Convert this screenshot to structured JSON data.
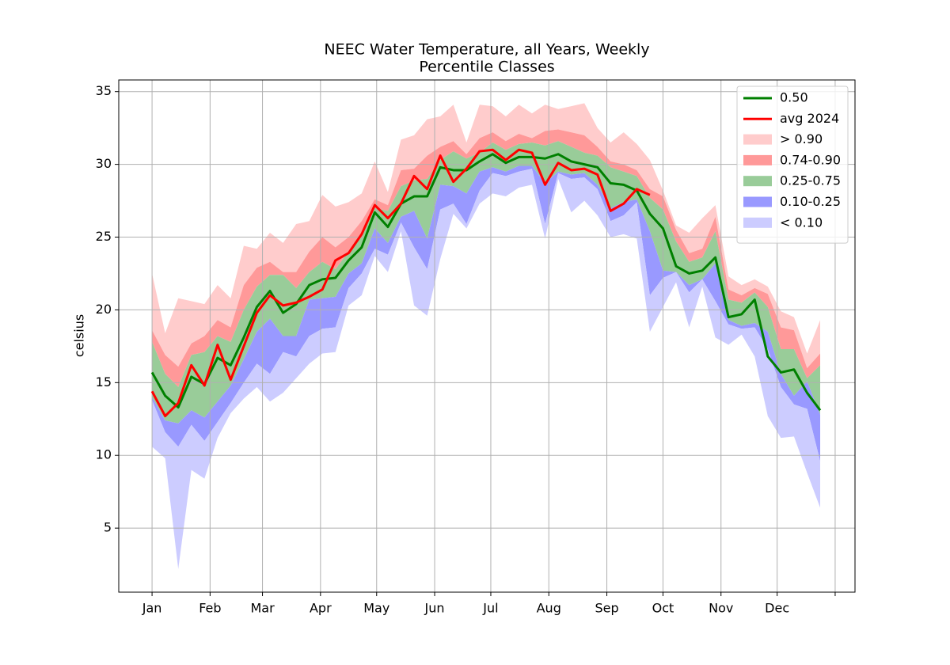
{
  "chart_data": {
    "type": "band-line",
    "title": "NEEC Water Temperature, all Years, Weekly",
    "subtitle": "Percentile Classes",
    "y_label": "celsius",
    "xlim": [
      -16.8,
      376.6
    ],
    "ylim": [
      0.6,
      35.8
    ],
    "xticks": [
      {
        "value": 1,
        "label": "Jan"
      },
      {
        "value": 32,
        "label": "Feb"
      },
      {
        "value": 60,
        "label": "Mar"
      },
      {
        "value": 91,
        "label": "Apr"
      },
      {
        "value": 121,
        "label": "May"
      },
      {
        "value": 152,
        "label": "Jun"
      },
      {
        "value": 182,
        "label": "Jul"
      },
      {
        "value": 213,
        "label": "Aug"
      },
      {
        "value": 244,
        "label": "Sep"
      },
      {
        "value": 274,
        "label": "Oct"
      },
      {
        "value": 305,
        "label": "Nov"
      },
      {
        "value": 335,
        "label": "Dec"
      },
      {
        "value": 366
      }
    ],
    "yticks": [
      5,
      10,
      15,
      20,
      25,
      30,
      35
    ],
    "grid": true,
    "legend": "upper right",
    "x": [
      1,
      8,
      15,
      22,
      29,
      36,
      43,
      50,
      57,
      64,
      71,
      78,
      85,
      92,
      99,
      106,
      113,
      120,
      127,
      134,
      141,
      148,
      155,
      162,
      169,
      176,
      183,
      190,
      197,
      204,
      211,
      218,
      225,
      232,
      239,
      246,
      253,
      260,
      267,
      274,
      281,
      288,
      295,
      302,
      309,
      316,
      323,
      330,
      337,
      344,
      351,
      358
    ],
    "series": [
      {
        "name": "0.50",
        "color": "#008000",
        "values": [
          15.7,
          14.1,
          13.3,
          15.4,
          14.9,
          16.7,
          16.2,
          18.1,
          20.2,
          21.3,
          19.8,
          20.4,
          21.7,
          22.1,
          22.2,
          23.4,
          24.3,
          26.7,
          25.7,
          27.3,
          27.8,
          27.8,
          29.8,
          29.6,
          29.6,
          30.2,
          30.7,
          30.1,
          30.5,
          30.5,
          30.4,
          30.7,
          30.2,
          30.0,
          29.8,
          28.7,
          28.6,
          28.2,
          26.6,
          25.6,
          23.0,
          22.5,
          22.7,
          23.6,
          19.5,
          19.7,
          20.7,
          16.8,
          15.7,
          15.9,
          14.3,
          13.1
        ]
      },
      {
        "name": "avg 2024",
        "color": "#ff0000",
        "values": [
          14.4,
          12.7,
          13.6,
          16.2,
          14.8,
          17.6,
          15.2,
          17.5,
          19.8,
          21.0,
          20.3,
          20.5,
          20.9,
          21.4,
          23.4,
          23.9,
          25.2,
          27.2,
          26.3,
          27.3,
          29.2,
          28.3,
          30.6,
          28.8,
          29.7,
          30.9,
          31.0,
          30.3,
          31.0,
          30.8,
          28.6,
          30.1,
          29.6,
          29.7,
          29.3,
          26.8,
          27.3,
          28.3,
          27.9,
          null,
          null,
          null,
          null,
          null,
          null,
          null,
          null,
          null,
          null,
          null,
          null,
          null
        ]
      }
    ],
    "bands": [
      {
        "name": "> 0.90",
        "color": "#ffcccc",
        "lower": [
          18.6,
          16.9,
          16.1,
          17.7,
          18.2,
          19.3,
          18.8,
          21.7,
          22.9,
          23.3,
          22.6,
          22.6,
          24.0,
          25.0,
          24.3,
          25.0,
          26.1,
          27.6,
          27.2,
          29.6,
          29.7,
          30.6,
          31.2,
          31.6,
          30.7,
          31.8,
          32.2,
          31.6,
          32.1,
          31.8,
          32.3,
          32.4,
          32.2,
          32.0,
          31.2,
          30.2,
          30.0,
          29.6,
          28.3,
          27.8,
          25.5,
          23.9,
          24.2,
          26.4,
          21.4,
          21.0,
          21.5,
          21.1,
          18.8,
          18.6,
          16.0,
          17.0
        ],
        "upper": [
          22.5,
          18.4,
          20.8,
          20.6,
          20.4,
          21.7,
          20.8,
          24.4,
          24.2,
          25.3,
          24.6,
          25.9,
          26.1,
          27.9,
          27.1,
          27.4,
          28.0,
          30.2,
          28.1,
          31.7,
          32.0,
          33.1,
          33.3,
          34.1,
          31.5,
          34.1,
          34.0,
          33.3,
          34.1,
          33.5,
          34.1,
          33.8,
          34.0,
          34.2,
          32.5,
          31.5,
          32.2,
          31.4,
          30.3,
          28.2,
          25.8,
          25.3,
          26.3,
          27.2,
          22.3,
          21.7,
          22.1,
          21.6,
          19.9,
          19.5,
          17.0,
          19.3
        ]
      },
      {
        "name": "0.74-0.90",
        "color": "#ff9999",
        "lower": [
          17.8,
          15.6,
          14.7,
          16.9,
          17.1,
          18.2,
          17.8,
          20.0,
          21.6,
          22.4,
          22.4,
          21.5,
          22.6,
          23.3,
          22.8,
          24.0,
          25.0,
          27.0,
          26.8,
          28.5,
          28.9,
          29.0,
          30.3,
          30.9,
          30.4,
          30.8,
          31.5,
          31.0,
          31.4,
          31.5,
          31.3,
          31.6,
          31.2,
          30.8,
          30.6,
          29.8,
          29.5,
          29.2,
          27.7,
          26.9,
          24.7,
          23.3,
          23.6,
          25.4,
          20.7,
          20.5,
          21.2,
          20.2,
          17.3,
          17.3,
          15.3,
          16.2
        ],
        "upper": [
          18.6,
          16.9,
          16.1,
          17.7,
          18.2,
          19.3,
          18.8,
          21.7,
          22.9,
          23.3,
          22.6,
          22.6,
          24.0,
          25.0,
          24.3,
          25.0,
          26.1,
          27.6,
          27.2,
          29.6,
          29.7,
          30.6,
          31.2,
          31.6,
          30.7,
          31.8,
          32.2,
          31.6,
          32.1,
          31.8,
          32.3,
          32.4,
          32.2,
          32.0,
          31.2,
          30.2,
          30.0,
          29.6,
          28.3,
          27.8,
          25.5,
          23.9,
          24.2,
          26.4,
          21.4,
          21.0,
          21.5,
          21.1,
          18.8,
          18.6,
          16.0,
          17.0
        ]
      },
      {
        "name": "0.25-0.75",
        "color": "#99cc99",
        "lower": [
          14.0,
          12.4,
          12.2,
          13.1,
          12.6,
          13.7,
          14.8,
          16.6,
          18.5,
          19.4,
          18.2,
          18.2,
          20.7,
          20.8,
          20.9,
          22.5,
          23.2,
          25.6,
          24.6,
          26.4,
          26.8,
          24.9,
          28.6,
          28.5,
          28.0,
          29.5,
          29.8,
          29.5,
          29.9,
          29.9,
          28.7,
          29.5,
          29.3,
          29.4,
          28.6,
          27.0,
          27.4,
          27.6,
          25.4,
          22.7,
          22.6,
          21.7,
          22.1,
          23.2,
          19.3,
          18.9,
          19.1,
          18.5,
          15.6,
          14.1,
          15.1,
          12.8
        ],
        "upper": [
          17.8,
          15.6,
          14.7,
          16.9,
          17.1,
          18.2,
          17.8,
          20.0,
          21.6,
          22.4,
          22.4,
          21.5,
          22.6,
          23.3,
          22.8,
          24.0,
          25.0,
          27.0,
          26.8,
          28.5,
          28.9,
          29.0,
          30.3,
          30.9,
          30.4,
          30.8,
          31.5,
          31.0,
          31.4,
          31.5,
          31.3,
          31.6,
          31.2,
          30.8,
          30.6,
          29.8,
          29.5,
          29.2,
          27.7,
          26.9,
          24.7,
          23.3,
          23.6,
          25.4,
          20.7,
          20.5,
          21.2,
          20.2,
          17.3,
          17.3,
          15.3,
          16.2
        ]
      },
      {
        "name": "0.10-0.25",
        "color": "#9999ff",
        "lower": [
          13.8,
          11.6,
          10.6,
          12.1,
          11.0,
          12.3,
          13.6,
          15.0,
          16.3,
          15.6,
          17.1,
          16.8,
          18.2,
          18.7,
          18.8,
          21.5,
          22.5,
          24.2,
          23.8,
          26.0,
          24.3,
          22.8,
          26.9,
          27.3,
          25.9,
          28.2,
          29.4,
          29.2,
          29.5,
          29.7,
          25.9,
          29.4,
          29.0,
          29.1,
          28.3,
          26.1,
          26.5,
          27.4,
          21.0,
          22.2,
          22.6,
          21.2,
          22.1,
          20.6,
          19.0,
          18.7,
          18.8,
          17.3,
          14.7,
          13.5,
          13.2,
          9.6
        ],
        "upper": [
          14.0,
          12.4,
          12.2,
          13.1,
          12.6,
          13.7,
          14.8,
          16.6,
          18.5,
          19.4,
          18.2,
          18.2,
          20.7,
          20.8,
          20.9,
          22.5,
          23.2,
          25.6,
          24.6,
          26.4,
          26.8,
          24.9,
          28.6,
          28.5,
          28.0,
          29.5,
          29.8,
          29.5,
          29.9,
          29.9,
          28.7,
          29.5,
          29.3,
          29.4,
          28.6,
          27.0,
          27.4,
          27.6,
          25.4,
          22.7,
          22.6,
          21.7,
          22.1,
          23.2,
          19.3,
          18.9,
          19.1,
          18.5,
          15.6,
          14.1,
          15.1,
          12.8
        ]
      },
      {
        "name": "< 0.10",
        "color": "#ccccff",
        "lower": [
          10.6,
          9.8,
          2.2,
          9.0,
          8.4,
          11.2,
          12.9,
          13.9,
          14.7,
          13.7,
          14.3,
          15.3,
          16.3,
          17.0,
          17.1,
          20.3,
          21.0,
          23.7,
          22.6,
          25.4,
          20.3,
          19.6,
          23.5,
          26.6,
          25.6,
          27.3,
          28.0,
          27.8,
          28.4,
          28.6,
          24.9,
          29.0,
          26.7,
          27.5,
          26.5,
          25.0,
          25.2,
          24.9,
          18.5,
          20.2,
          21.9,
          18.8,
          21.6,
          18.1,
          17.6,
          18.3,
          16.8,
          12.7,
          11.2,
          11.3,
          8.8,
          6.4
        ],
        "upper": [
          13.8,
          11.6,
          10.6,
          12.1,
          11.0,
          12.3,
          13.6,
          15.0,
          16.3,
          15.6,
          17.1,
          16.8,
          18.2,
          18.7,
          18.8,
          21.5,
          22.5,
          24.2,
          23.8,
          26.0,
          24.3,
          22.8,
          26.9,
          27.3,
          25.9,
          28.2,
          29.4,
          29.2,
          29.5,
          29.7,
          25.9,
          29.4,
          29.0,
          29.1,
          28.3,
          26.1,
          26.5,
          27.4,
          21.0,
          22.2,
          22.6,
          21.2,
          22.1,
          20.6,
          19.0,
          18.7,
          18.8,
          17.3,
          14.7,
          13.5,
          13.2,
          9.6
        ]
      }
    ]
  }
}
